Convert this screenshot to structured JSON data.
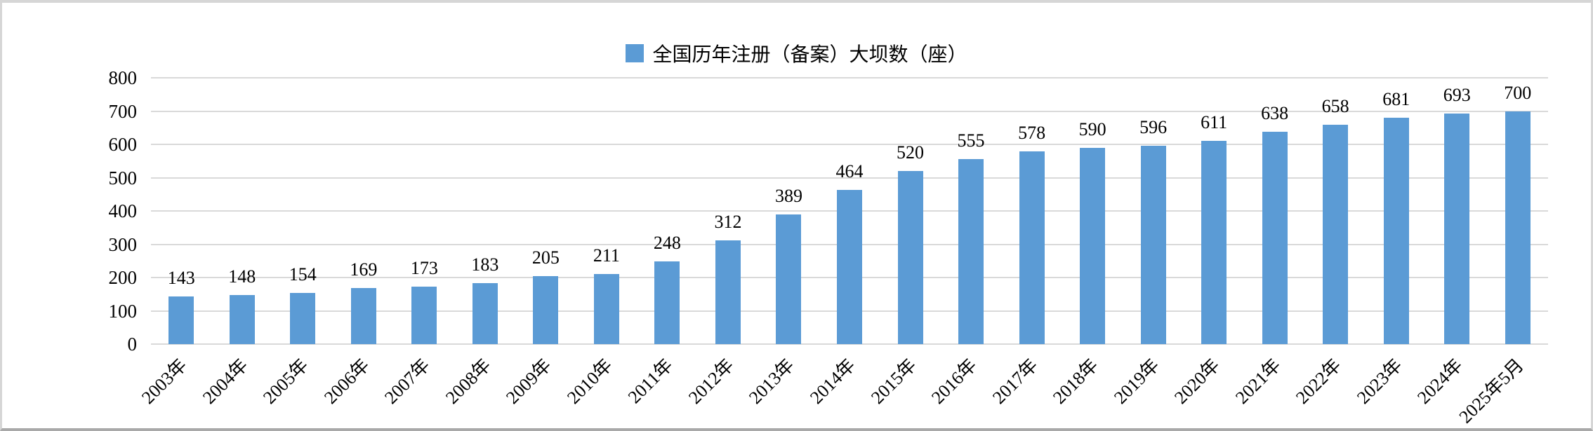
{
  "chart_data": {
    "type": "bar",
    "title": "",
    "legend_entries": [
      "全国历年注册（备案）大坝数（座）"
    ],
    "legend_position": "top-center",
    "categories": [
      "2003年",
      "2004年",
      "2005年",
      "2006年",
      "2007年",
      "2008年",
      "2009年",
      "2010年",
      "2011年",
      "2012年",
      "2013年",
      "2014年",
      "2015年",
      "2016年",
      "2017年",
      "2018年",
      "2019年",
      "2020年",
      "2021年",
      "2022年",
      "2023年",
      "2024年",
      "2025年5月"
    ],
    "series": [
      {
        "name": "全国历年注册（备案）大坝数（座）",
        "values": [
          143,
          148,
          154,
          169,
          173,
          183,
          205,
          211,
          248,
          312,
          389,
          464,
          520,
          555,
          578,
          590,
          596,
          611,
          638,
          658,
          681,
          693,
          700
        ]
      }
    ],
    "data_labels": "outside-end",
    "xlabel": "",
    "ylabel": "",
    "ylim": [
      0,
      800
    ],
    "yticks": [
      0,
      100,
      200,
      300,
      400,
      500,
      600,
      700,
      800
    ],
    "grid": "horizontal",
    "x_tick_rotation_deg": 45,
    "bar_color": "#5B9BD5",
    "gridline_color": "#D9D9D9",
    "text_color": "#000000",
    "frame_border_color": "#d6d6d6"
  }
}
